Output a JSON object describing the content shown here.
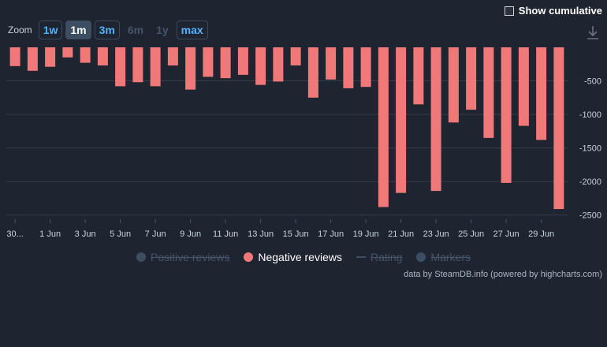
{
  "controls": {
    "zoom_label": "Zoom",
    "zoom_buttons": [
      {
        "label": "1w",
        "state": "normal"
      },
      {
        "label": "1m",
        "state": "active"
      },
      {
        "label": "3m",
        "state": "normal"
      },
      {
        "label": "6m",
        "state": "disabled"
      },
      {
        "label": "1y",
        "state": "disabled"
      },
      {
        "label": "max",
        "state": "normal"
      }
    ],
    "show_cumulative_label": "Show cumulative",
    "show_cumulative_checked": false,
    "download_icon": "download-icon"
  },
  "legend": [
    {
      "label": "Positive reviews",
      "visible": false,
      "marker": "dot",
      "color": "#3d4d62"
    },
    {
      "label": "Negative reviews",
      "visible": true,
      "marker": "dot",
      "color": "#f07878"
    },
    {
      "label": "Rating",
      "visible": false,
      "marker": "dash",
      "color": "#3d4d62"
    },
    {
      "label": "Markers",
      "visible": false,
      "marker": "dot",
      "color": "#3d4d62"
    }
  ],
  "credits": "data by SteamDB.info (powered by highcharts.com)",
  "chart_data": {
    "type": "bar",
    "title": "",
    "xlabel": "",
    "ylabel": "",
    "ylim": [
      -2550,
      0
    ],
    "y_ticks": [
      -500,
      -1000,
      -1500,
      -2000,
      -2500
    ],
    "y_tick_labels": [
      "-500",
      "-1000",
      "-1500",
      "-2000",
      "-2500"
    ],
    "x_tick_labels": [
      "30...",
      "1 Jun",
      "3 Jun",
      "5 Jun",
      "7 Jun",
      "9 Jun",
      "11 Jun",
      "13 Jun",
      "15 Jun",
      "17 Jun",
      "19 Jun",
      "21 Jun",
      "23 Jun",
      "25 Jun",
      "27 Jun",
      "29 Jun"
    ],
    "categories": [
      "30 May",
      "31 May",
      "1 Jun",
      "2 Jun",
      "3 Jun",
      "4 Jun",
      "5 Jun",
      "6 Jun",
      "7 Jun",
      "8 Jun",
      "9 Jun",
      "10 Jun",
      "11 Jun",
      "12 Jun",
      "13 Jun",
      "14 Jun",
      "15 Jun",
      "16 Jun",
      "17 Jun",
      "18 Jun",
      "19 Jun",
      "20 Jun",
      "21 Jun",
      "22 Jun",
      "23 Jun",
      "24 Jun",
      "25 Jun",
      "26 Jun",
      "27 Jun",
      "28 Jun",
      "29 Jun",
      "30 Jun"
    ],
    "series": [
      {
        "name": "Negative reviews",
        "color": "#f07878",
        "values": [
          -280,
          -350,
          -290,
          -150,
          -230,
          -270,
          -580,
          -520,
          -580,
          -270,
          -630,
          -440,
          -460,
          -410,
          -560,
          -510,
          -270,
          -750,
          -480,
          -610,
          -590,
          -2380,
          -2170,
          -850,
          -2140,
          -1120,
          -930,
          -1350,
          -2020,
          -1170,
          -1380,
          -2410
        ]
      }
    ],
    "grid": true,
    "legend_position": "bottom"
  }
}
